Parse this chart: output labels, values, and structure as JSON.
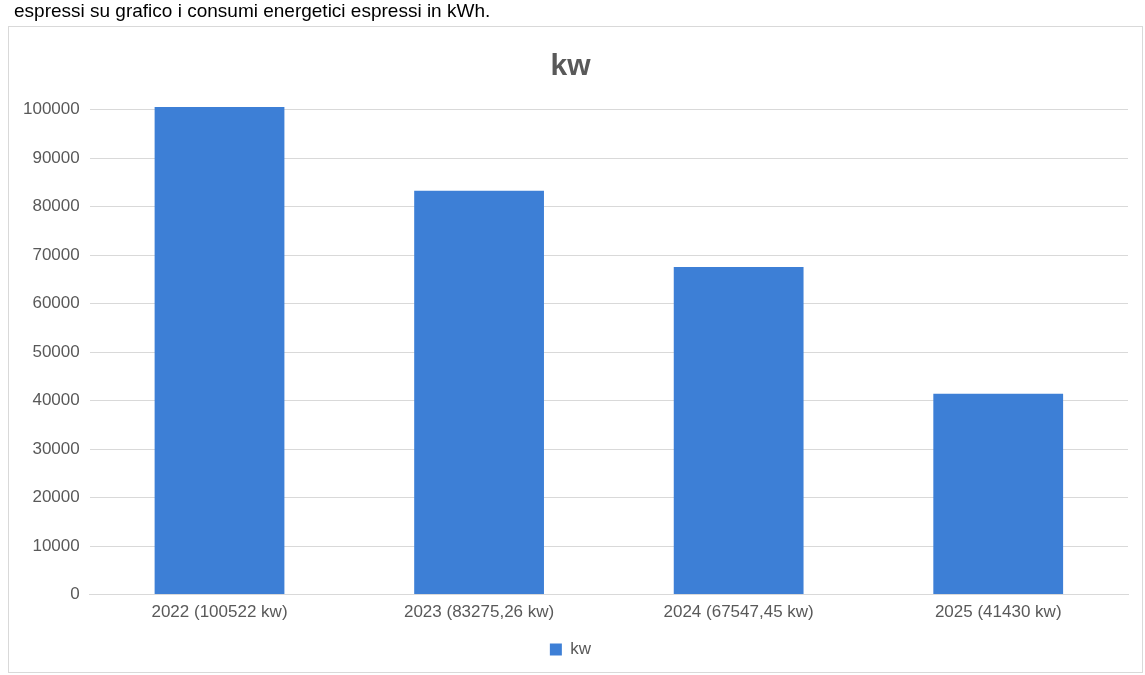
{
  "chart_data": {
    "type": "bar",
    "title": "kw",
    "categories": [
      "2022 (100522 kw)",
      "2023 (83275,26 kw)",
      "2024 (67547,45 kw)",
      "2025 (41430 kw)"
    ],
    "series": [
      {
        "name": "kw",
        "color": "#3d7fd6",
        "values": [
          100522,
          83275.26,
          67547.45,
          41430
        ]
      }
    ],
    "ylim": [
      0,
      100522
    ],
    "yticks": [
      0,
      10000,
      20000,
      30000,
      40000,
      50000,
      60000,
      70000,
      80000,
      90000,
      100000
    ],
    "grid": "y",
    "legend": "bottom",
    "annotations": [
      "espressi su grafico i consumi energetici espressi in kWh."
    ]
  }
}
